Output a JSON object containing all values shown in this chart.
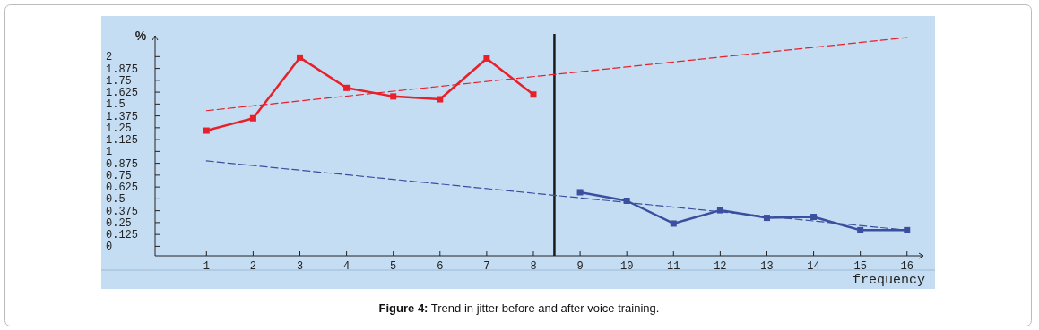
{
  "chart_data": {
    "type": "line",
    "xlabel": "frequency",
    "ylabel": "%",
    "annotations": [
      "Figure 4: Trend in jitter before and after voice training."
    ],
    "xlim": [
      -0.1,
      16.35
    ],
    "ylim": [
      -0.1,
      2.22
    ],
    "xticks": [
      1,
      2,
      3,
      4,
      5,
      6,
      7,
      8,
      9,
      10,
      11,
      12,
      13,
      14,
      15,
      16
    ],
    "yticks": [
      0,
      0.125,
      0.25,
      0.375,
      0.5,
      0.625,
      0.75,
      0.875,
      1,
      1.125,
      1.25,
      1.375,
      1.5,
      1.625,
      1.75,
      1.875,
      2
    ],
    "grid": false,
    "ref_lines": [
      {
        "axis": "x",
        "value": 8.45,
        "color": "#1a1a1a"
      }
    ],
    "series": [
      {
        "color": "#e8202a",
        "x": [
          1,
          2,
          3,
          4,
          5,
          6,
          7,
          8
        ],
        "values": [
          1.22,
          1.35,
          1.99,
          1.67,
          1.58,
          1.55,
          1.98,
          1.6
        ],
        "marker": "square",
        "line_style": "solid"
      },
      {
        "color": "#3b4fa0",
        "x": [
          9,
          10,
          11,
          12,
          13,
          14,
          15,
          16
        ],
        "values": [
          0.57,
          0.48,
          0.24,
          0.38,
          0.3,
          0.31,
          0.17,
          0.17
        ],
        "marker": "square",
        "line_style": "solid"
      },
      {
        "color": "#e8202a",
        "x": [
          1,
          16
        ],
        "values": [
          1.43,
          2.2
        ],
        "marker": "none",
        "line_style": "dashed"
      },
      {
        "color": "#3b4fa0",
        "x": [
          1,
          16
        ],
        "values": [
          0.9,
          0.17
        ],
        "marker": "none",
        "line_style": "dashed"
      }
    ]
  }
}
